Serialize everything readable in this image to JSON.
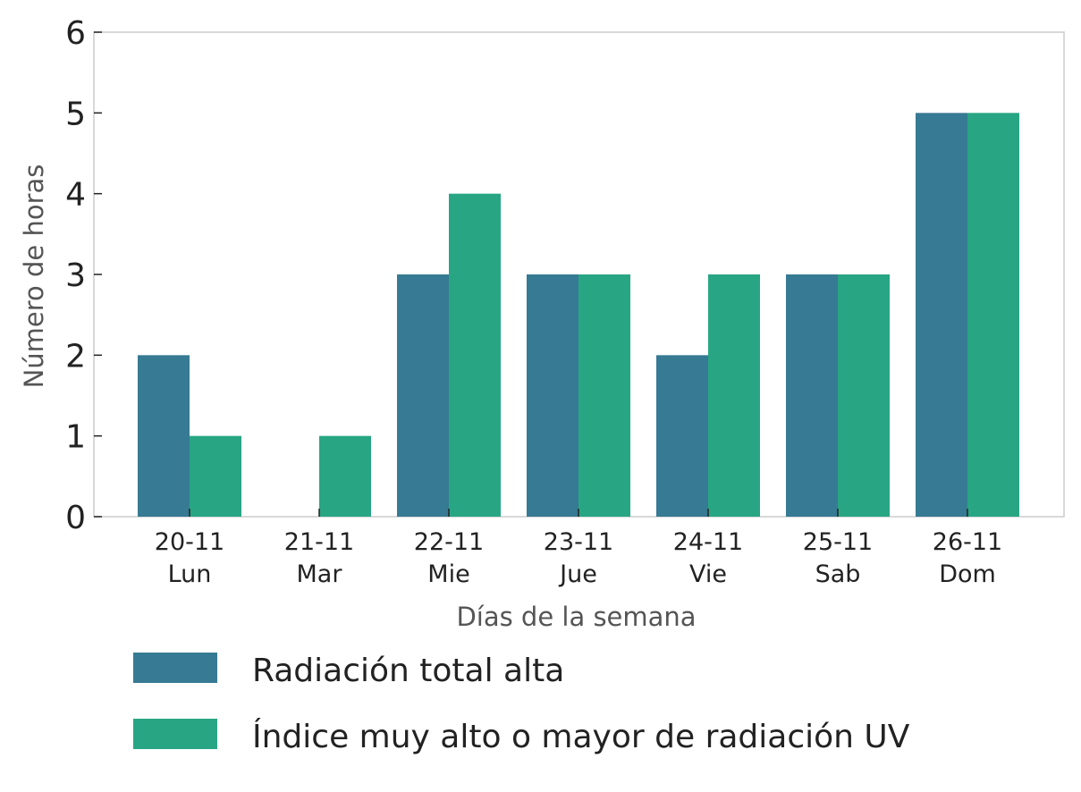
{
  "chart_data": {
    "type": "bar",
    "categories": [
      [
        "20-11",
        "Lun"
      ],
      [
        "21-11",
        "Mar"
      ],
      [
        "22-11",
        "Mie"
      ],
      [
        "23-11",
        "Jue"
      ],
      [
        "24-11",
        "Vie"
      ],
      [
        "25-11",
        "Sab"
      ],
      [
        "26-11",
        "Dom"
      ]
    ],
    "series": [
      {
        "name": "Radiación total alta",
        "color": "#377a93",
        "values": [
          2,
          0,
          3,
          3,
          2,
          3,
          5
        ]
      },
      {
        "name": "Índice muy alto o mayor de radiación UV",
        "color": "#28a684",
        "values": [
          1,
          1,
          4,
          3,
          3,
          3,
          5
        ]
      }
    ],
    "xlabel": "Días de la semana",
    "ylabel": "Número de horas",
    "ylim": [
      0,
      6
    ],
    "yticks": [
      0,
      1,
      2,
      3,
      4,
      5,
      6
    ],
    "grid": false,
    "legend_position": "bottom"
  }
}
